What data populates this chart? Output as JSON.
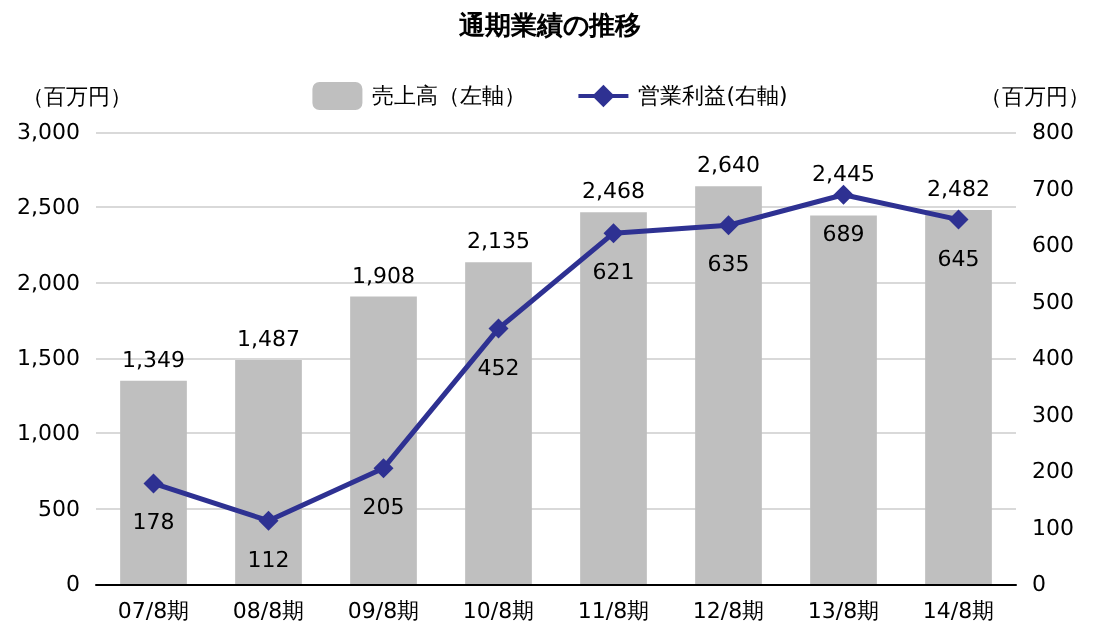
{
  "chart_data": {
    "type": "bar",
    "title": "通期業績の推移",
    "ylabel": "（百万円）",
    "y2label": "（百万円）",
    "categories": [
      "07/8期",
      "08/8期",
      "09/8期",
      "10/8期",
      "11/8期",
      "12/8期",
      "13/8期",
      "14/8期"
    ],
    "series": [
      {
        "name": "売上高（左軸）",
        "color": "#bfbfbf",
        "values": [
          1349,
          1487,
          1908,
          2135,
          2468,
          2640,
          2445,
          2482
        ],
        "value_labels": [
          "1,349",
          "1,487",
          "1,908",
          "2,135",
          "2,468",
          "2,640",
          "2,445",
          "2,482"
        ]
      },
      {
        "name": "営業利益(右軸)",
        "type": "line",
        "axis": "y2",
        "color": "#2e3192",
        "values": [
          178,
          112,
          205,
          452,
          621,
          635,
          689,
          645
        ],
        "value_labels": [
          "178",
          "112",
          "205",
          "452",
          "621",
          "635",
          "689",
          "645"
        ]
      }
    ],
    "ylim": [
      0,
      3000
    ],
    "yticks": [
      {
        "value": 0,
        "label": "0"
      },
      {
        "value": 500,
        "label": "500"
      },
      {
        "value": 1000,
        "label": "1,000"
      },
      {
        "value": 1500,
        "label": "1,500"
      },
      {
        "value": 2000,
        "label": "2,000"
      },
      {
        "value": 2500,
        "label": "2,500"
      },
      {
        "value": 3000,
        "label": "3,000"
      }
    ],
    "y2lim": [
      0,
      800
    ],
    "y2ticks": [
      0,
      100,
      200,
      300,
      400,
      500,
      600,
      700,
      800
    ],
    "grid": "y",
    "legend": "top",
    "marker": "diamond"
  }
}
